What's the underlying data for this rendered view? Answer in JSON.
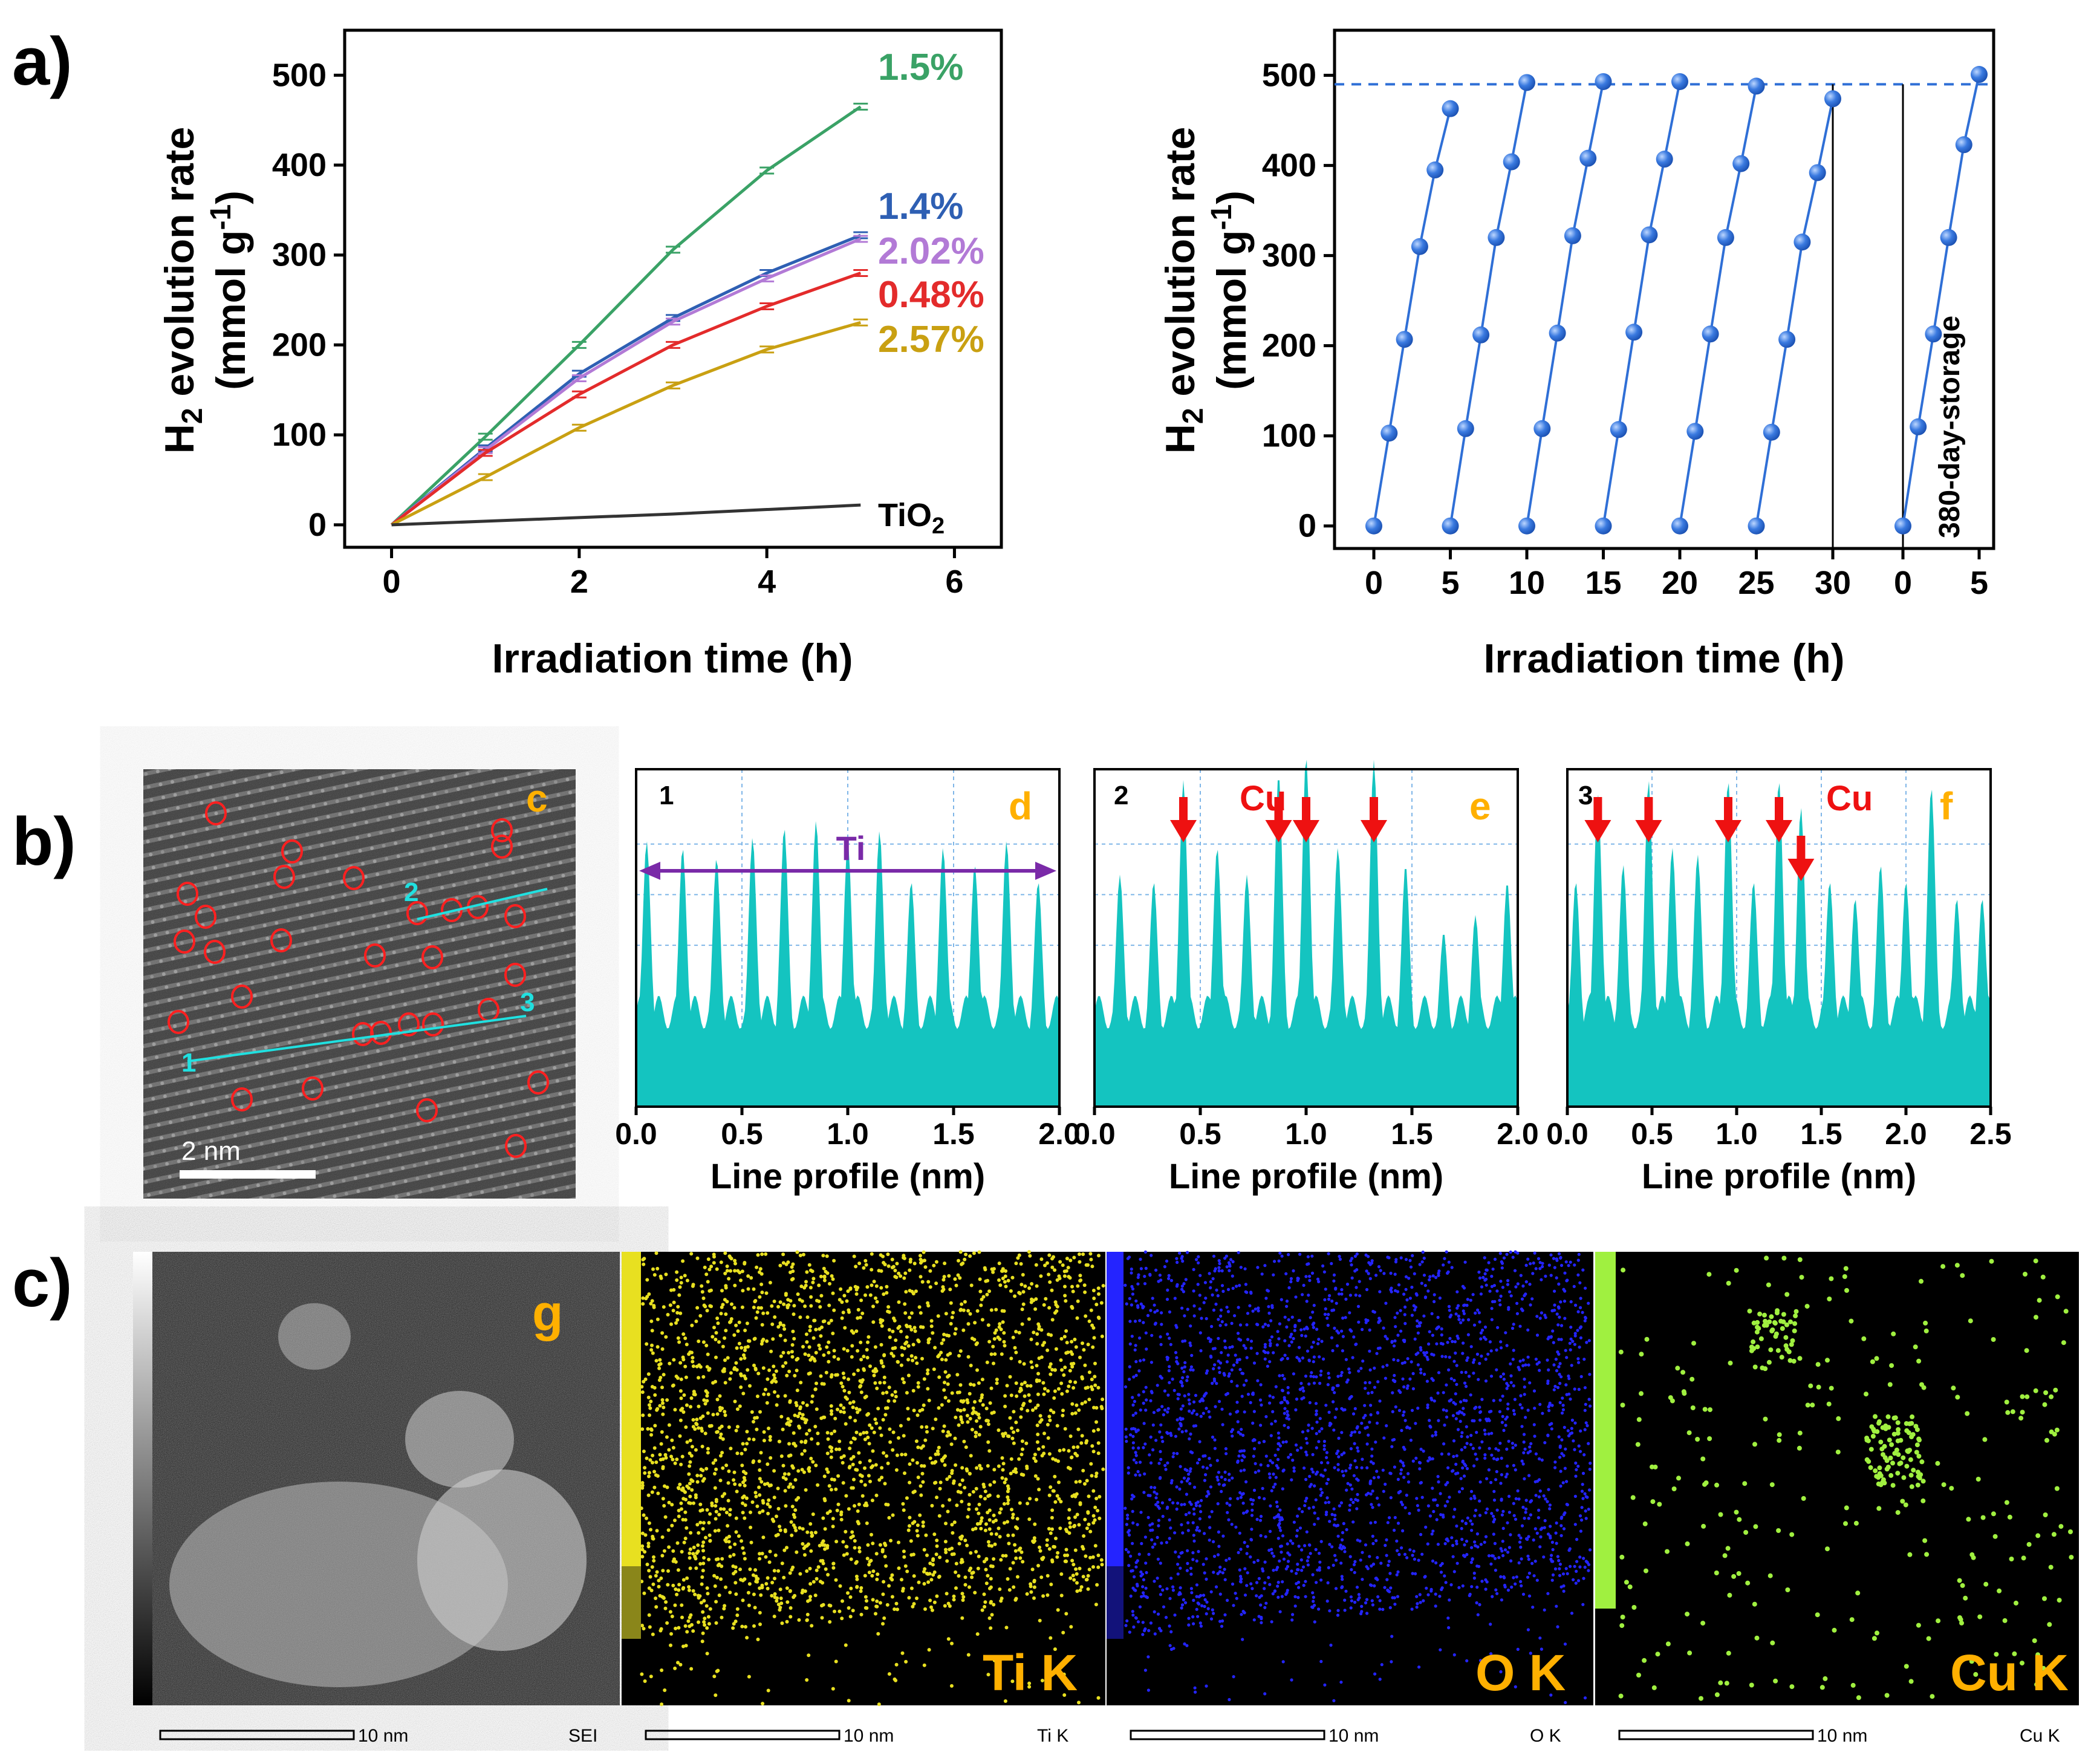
{
  "panel_labels": {
    "a": "a)",
    "b": "b)",
    "c": "c)"
  },
  "chart_data": [
    {
      "type": "line",
      "id": "a-left",
      "xlabel": "Irradiation time (h)",
      "ylabel": "H2 evolution rate (mmol g-1)",
      "xlim": [
        -0.5,
        6.5
      ],
      "ylim": [
        -25,
        550
      ],
      "xticks": [
        "0",
        "2",
        "4",
        "6"
      ],
      "yticks": [
        "0",
        "100",
        "200",
        "300",
        "400",
        "500"
      ],
      "x": [
        0,
        1,
        2,
        3,
        4,
        5
      ],
      "series": [
        {
          "name": "1.5%",
          "color": "#3aa266",
          "values": [
            0,
            98,
            200,
            306,
            394,
            465
          ]
        },
        {
          "name": "1.4%",
          "color": "#2e5fb3",
          "values": [
            0,
            85,
            168,
            230,
            280,
            322
          ]
        },
        {
          "name": "2.02%",
          "color": "#b27ad6",
          "values": [
            0,
            83,
            163,
            226,
            274,
            318
          ]
        },
        {
          "name": "0.48%",
          "color": "#e32b2b",
          "values": [
            0,
            80,
            145,
            200,
            243,
            280
          ]
        },
        {
          "name": "2.57%",
          "color": "#c9a012",
          "values": [
            0,
            53,
            108,
            155,
            195,
            225
          ]
        },
        {
          "name": "TiO2",
          "color": "#333333",
          "values": [
            0,
            4,
            8,
            12,
            17,
            22
          ]
        }
      ],
      "series_labels": {
        "s1": "1.5%",
        "s2": "1.4%",
        "s3": "2.02%",
        "s4": "0.48%",
        "s5": "2.57%",
        "tio2_main": "TiO",
        "tio2_sub": "2"
      }
    },
    {
      "type": "scatter",
      "id": "a-right",
      "xlabel": "Irradiation time (h)",
      "ylabel": "H2 evolution rate (mmol g-1)",
      "ylim": [
        -25,
        550
      ],
      "xticks": [
        "0",
        "5",
        "10",
        "15",
        "20",
        "25",
        "30",
        "0",
        "5"
      ],
      "yticks": [
        "0",
        "100",
        "200",
        "300",
        "400",
        "500"
      ],
      "reference_line": 490,
      "annotation": "380-day-storage",
      "color": "#2f6fd6",
      "cycles": [
        {
          "x": [
            0,
            1,
            2,
            3,
            4,
            5
          ],
          "y": [
            0,
            103,
            207,
            310,
            395,
            463
          ]
        },
        {
          "x": [
            5,
            6,
            7,
            8,
            9,
            10
          ],
          "y": [
            0,
            108,
            212,
            320,
            404,
            492
          ]
        },
        {
          "x": [
            10,
            11,
            12,
            13,
            14,
            15
          ],
          "y": [
            0,
            108,
            214,
            322,
            408,
            493
          ]
        },
        {
          "x": [
            15,
            16,
            17,
            18,
            19,
            20
          ],
          "y": [
            0,
            107,
            215,
            323,
            407,
            493
          ]
        },
        {
          "x": [
            20,
            21,
            22,
            23,
            24,
            25
          ],
          "y": [
            0,
            105,
            213,
            320,
            402,
            488
          ]
        },
        {
          "x": [
            25,
            26,
            27,
            28,
            29,
            30
          ],
          "y": [
            0,
            104,
            207,
            315,
            392,
            474
          ]
        },
        {
          "x": [
            0,
            1,
            2,
            3,
            4,
            5
          ],
          "y": [
            0,
            110,
            213,
            320,
            423,
            501
          ],
          "after_storage": true
        }
      ]
    },
    {
      "type": "area",
      "id": "b-d",
      "panel": "d",
      "profile_no": "1",
      "xlabel": "Line profile (nm)",
      "xlim": [
        0,
        2.0
      ],
      "xticks": [
        "0.0",
        "0.5",
        "1.0",
        "1.5",
        "2.0"
      ],
      "annotation": "Ti",
      "peaks": [
        0.05,
        0.22,
        0.38,
        0.55,
        0.7,
        0.85,
        1.0,
        1.15,
        1.3,
        1.45,
        1.6,
        1.75,
        1.9
      ],
      "amplitudes": [
        0.62,
        0.6,
        0.57,
        0.63,
        0.66,
        0.68,
        0.62,
        0.65,
        0.5,
        0.6,
        0.55,
        0.62,
        0.5
      ]
    },
    {
      "type": "area",
      "id": "b-e",
      "panel": "e",
      "profile_no": "2",
      "xlabel": "Line profile (nm)",
      "xlim": [
        0,
        2.0
      ],
      "xticks": [
        "0.0",
        "0.5",
        "1.0",
        "1.5",
        "2.0"
      ],
      "annotation": "Cu",
      "arrows_at": [
        0.42,
        0.87,
        1.0,
        1.32
      ],
      "peaks": [
        0.12,
        0.28,
        0.42,
        0.58,
        0.72,
        0.87,
        1.0,
        1.15,
        1.32,
        1.47,
        1.65,
        1.8,
        1.95
      ],
      "amplitudes": [
        0.52,
        0.5,
        0.8,
        0.6,
        0.52,
        0.82,
        0.87,
        0.6,
        0.86,
        0.55,
        0.35,
        0.4,
        0.5
      ]
    },
    {
      "type": "area",
      "id": "b-f",
      "panel": "f",
      "profile_no": "3",
      "xlabel": "Line profile (nm)",
      "xlim": [
        0,
        2.5
      ],
      "xticks": [
        "0.0",
        "0.5",
        "1.0",
        "1.5",
        "2.0",
        "2.5"
      ],
      "annotation": "Cu",
      "arrows_at": [
        0.18,
        0.48,
        0.95,
        1.25,
        1.38
      ],
      "peaks": [
        0.05,
        0.18,
        0.33,
        0.48,
        0.62,
        0.77,
        0.95,
        1.1,
        1.25,
        1.38,
        1.55,
        1.7,
        1.85,
        2.0,
        2.15,
        2.3,
        2.45
      ],
      "amplitudes": [
        0.5,
        0.76,
        0.55,
        0.8,
        0.6,
        0.58,
        0.8,
        0.5,
        0.8,
        0.72,
        0.5,
        0.45,
        0.55,
        0.5,
        0.78,
        0.45,
        0.45
      ]
    }
  ],
  "tem": {
    "label": "c",
    "scale": "2 nm",
    "line_labels": [
      "1",
      "2",
      "3"
    ]
  },
  "maps": [
    {
      "label": "g",
      "scale": "10 nm",
      "tag": "SEI"
    },
    {
      "label": "Ti K",
      "scale": "10 nm",
      "tag": "Ti K",
      "color": "#e8e020"
    },
    {
      "label": "O K",
      "scale": "10 nm",
      "tag": "O K",
      "color": "#2424ff"
    },
    {
      "label": "Cu K",
      "scale": "10 nm",
      "tag": "Cu K",
      "color": "#a0f040"
    }
  ]
}
